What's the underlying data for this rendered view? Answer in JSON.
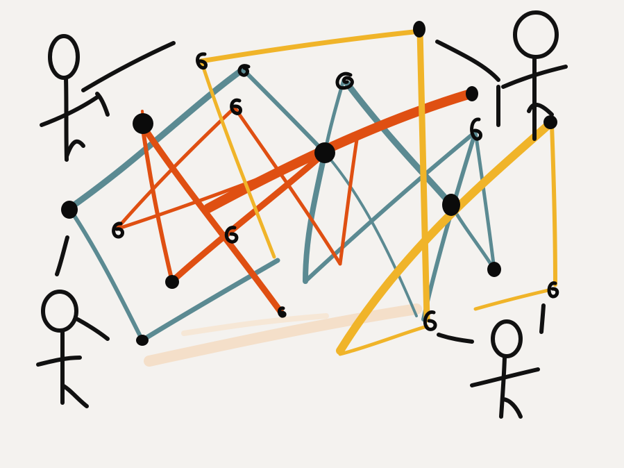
{
  "palette": {
    "background": "#f4f2ef",
    "teal": "#5b8a92",
    "orange": "#df4f12",
    "yellow": "#f0b429",
    "peach": "#f4d9bd",
    "ink": "#0b0b0b"
  },
  "figures": [
    {
      "name": "person-top-left",
      "role": "person-icon"
    },
    {
      "name": "person-top-right",
      "role": "person-icon"
    },
    {
      "name": "person-bottom-left",
      "role": "person-icon"
    },
    {
      "name": "person-bottom-right",
      "role": "person-icon"
    }
  ],
  "edge_colors": [
    "teal",
    "orange",
    "yellow",
    "peach"
  ]
}
